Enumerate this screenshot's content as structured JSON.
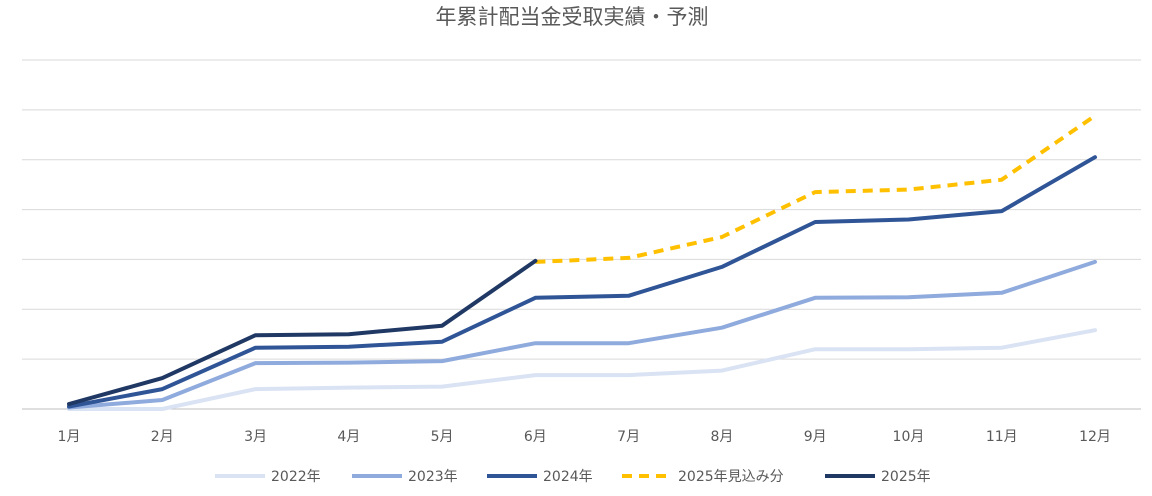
{
  "chart_data": {
    "type": "line",
    "title": "年累計配当金受取実績・予測",
    "xlabel": "",
    "ylabel": "",
    "categories": [
      "1月",
      "2月",
      "3月",
      "4月",
      "5月",
      "6月",
      "7月",
      "8月",
      "9月",
      "10月",
      "11月",
      "12月"
    ],
    "ylim": [
      0,
      7
    ],
    "y_tick_labels_shown": false,
    "grid": true,
    "legend_position": "bottom",
    "series": [
      {
        "name": "2022年",
        "color": "#dae3f3",
        "dashed": false,
        "values": [
          0,
          0,
          0.4,
          0.43,
          0.45,
          0.68,
          0.68,
          0.77,
          1.2,
          1.2,
          1.23,
          1.58
        ]
      },
      {
        "name": "2023年",
        "color": "#8faadc",
        "dashed": false,
        "values": [
          0.03,
          0.18,
          0.92,
          0.93,
          0.96,
          1.32,
          1.32,
          1.63,
          2.23,
          2.24,
          2.33,
          2.95
        ]
      },
      {
        "name": "2024年",
        "color": "#2f5597",
        "dashed": false,
        "values": [
          0.05,
          0.4,
          1.23,
          1.25,
          1.35,
          2.23,
          2.27,
          2.85,
          3.75,
          3.8,
          3.97,
          5.05
        ]
      },
      {
        "name": "2025年見込み分",
        "color": "#ffc000",
        "dashed": true,
        "values": [
          null,
          null,
          null,
          null,
          null,
          2.95,
          3.03,
          3.45,
          4.35,
          4.4,
          4.6,
          5.88
        ]
      },
      {
        "name": "2025年",
        "color": "#203864",
        "dashed": false,
        "values": [
          0.1,
          0.62,
          1.48,
          1.5,
          1.67,
          2.97,
          null,
          null,
          null,
          null,
          null,
          null
        ]
      }
    ]
  }
}
